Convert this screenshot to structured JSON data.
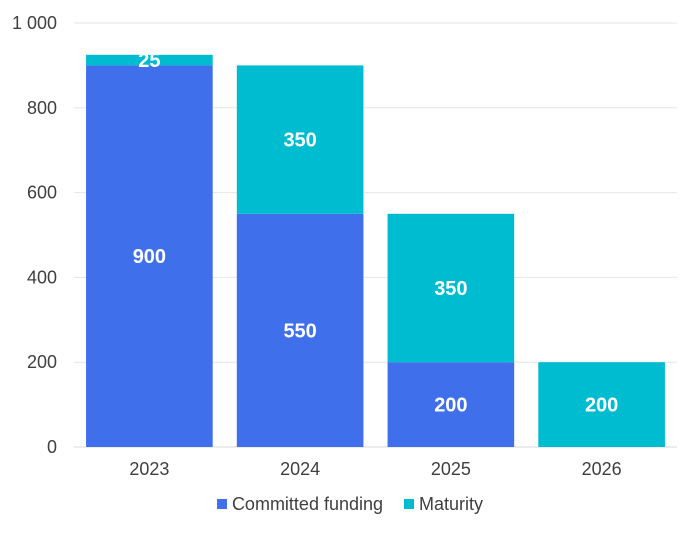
{
  "chart_data": {
    "type": "bar",
    "stacked": true,
    "categories": [
      "2023",
      "2024",
      "2025",
      "2026"
    ],
    "series": [
      {
        "name": "Committed funding",
        "color": "#3F6FEA",
        "values": [
          900,
          550,
          200,
          0
        ]
      },
      {
        "name": "Maturity",
        "color": "#00BCD1",
        "values": [
          25,
          350,
          350,
          200
        ]
      }
    ],
    "ylim": [
      0,
      1000
    ],
    "yticks": [
      0,
      200,
      400,
      600,
      800,
      1000
    ],
    "ytick_labels": [
      "0",
      "200",
      "400",
      "600",
      "800",
      "1 000"
    ],
    "grid": true,
    "legend_position": "bottom",
    "title": "",
    "xlabel": "",
    "ylabel": ""
  }
}
